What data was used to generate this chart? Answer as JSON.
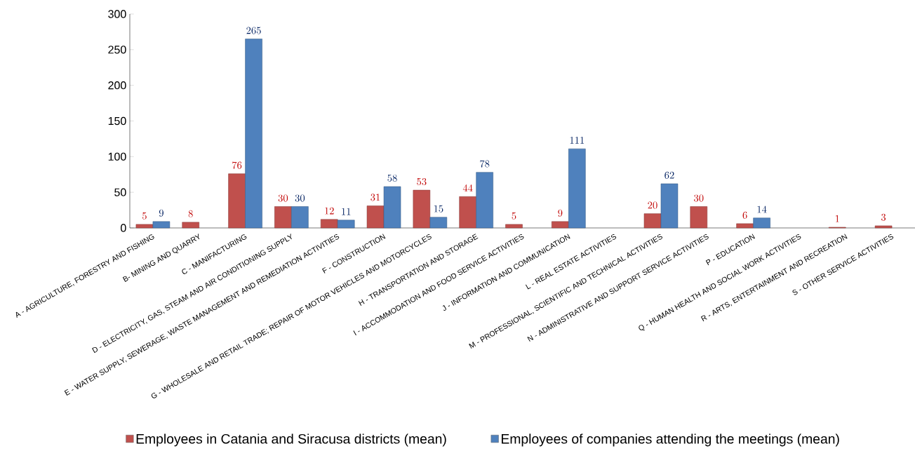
{
  "chart_data": {
    "type": "bar",
    "categories": [
      "A - AGRICULTURE, FORESTRY AND FISHING",
      "B- MINING AND QUARRY",
      "C - MANIFACTURING",
      "D - ELECTRICITY, GAS, STEAM AND AIR CONDITIONING SUPPLY",
      "E - WATER SUPPLY, SEWERAGE, WASTE MANAGEMENT AND REMEDIATION ACTIVITIES",
      "F - CONSTRUCTION",
      "G - WHOLESALE AND RETAIL TRADE; REPAIR OF MOTOR VEHICLES AND MOTORCYCLES",
      "H - TRANSPORTATION AND STORAGE",
      "I - ACCOMMODATION AND FOOD SERVICE ACTIVITIES",
      "J - INFORMATION AND COMMUNICATION",
      "L - REAL ESTATE ACTIVITIES",
      "M - PROFESSIONAL, SCIENTIFIC AND TECHNICAL ACTIVITIES",
      "N - ADMINISTRATIVE AND SUPPORT SERVICE ACTIVITIES",
      "P - EDUCATION",
      "Q - HUMAN HEALTH AND SOCIAL WORK ACTIVITIES",
      "R - ARTS, ENTERTAINMENT AND RECREATION",
      "S - OTHER SERVICE ACTIVITIES"
    ],
    "series": [
      {
        "name": "Employees in Catania and Siracusa districts (mean)",
        "color": "#c0504d",
        "values": [
          5,
          8,
          76,
          30,
          12,
          31,
          53,
          44,
          5,
          9,
          null,
          20,
          30,
          6,
          null,
          1,
          3
        ]
      },
      {
        "name": "Employees of companies attending the meetings (mean)",
        "color": "#4f81bd",
        "values": [
          9,
          null,
          265,
          30,
          11,
          58,
          15,
          78,
          null,
          111,
          null,
          62,
          null,
          14,
          null,
          null,
          null
        ]
      }
    ],
    "ylim": [
      0,
      300
    ],
    "yticks": [
      0,
      50,
      100,
      150,
      200,
      250,
      300
    ],
    "data_labels": true,
    "legend": "bottom",
    "grid": false
  }
}
